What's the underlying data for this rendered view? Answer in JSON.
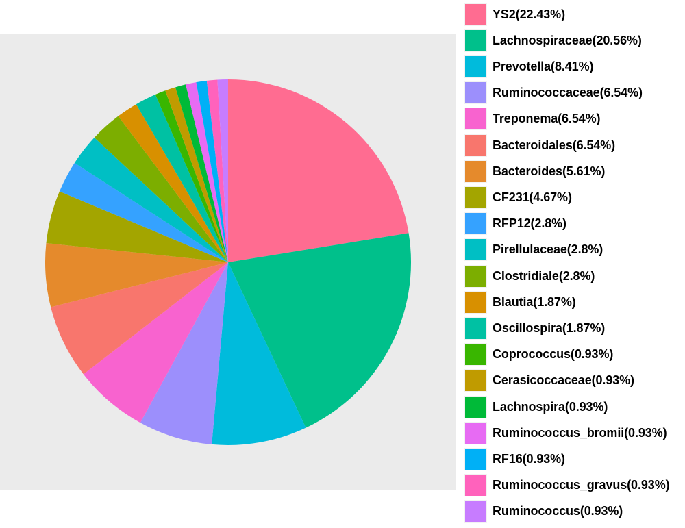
{
  "chart_data": {
    "type": "pie",
    "title": "",
    "start": "12 o'clock",
    "direction": "clockwise",
    "legend": "right",
    "background": "#ebebeb",
    "slices": [
      {
        "label": "YS2(22.43%)",
        "value": 22.43,
        "color": "#FF6C91"
      },
      {
        "label": "Lachnospiraceae(20.56%)",
        "value": 20.56,
        "color": "#00C08B"
      },
      {
        "label": "Prevotella(8.41%)",
        "value": 8.41,
        "color": "#00BBDC"
      },
      {
        "label": "Ruminococcaceae(6.54%)",
        "value": 6.54,
        "color": "#9C8FFC"
      },
      {
        "label": "Treponema(6.54%)",
        "value": 6.54,
        "color": "#F863CF"
      },
      {
        "label": "Bacteroidales(6.54%)",
        "value": 6.54,
        "color": "#F8766D"
      },
      {
        "label": "Bacteroides(5.61%)",
        "value": 5.61,
        "color": "#E58A2C"
      },
      {
        "label": "CF231(4.67%)",
        "value": 4.67,
        "color": "#A3A500"
      },
      {
        "label": "RFP12(2.8%)",
        "value": 2.8,
        "color": "#35A2FF"
      },
      {
        "label": "Pirellulaceae(2.8%)",
        "value": 2.8,
        "color": "#00BFC4"
      },
      {
        "label": "Clostridiale(2.8%)",
        "value": 2.8,
        "color": "#7CAE00"
      },
      {
        "label": "Blautia(1.87%)",
        "value": 1.87,
        "color": "#D89000"
      },
      {
        "label": "Oscillospira(1.87%)",
        "value": 1.87,
        "color": "#00C1A3"
      },
      {
        "label": "Coprococcus(0.93%)",
        "value": 0.93,
        "color": "#39B600"
      },
      {
        "label": "Cerasicoccaceae(0.93%)",
        "value": 0.93,
        "color": "#C09B00"
      },
      {
        "label": "Lachnospira(0.93%)",
        "value": 0.93,
        "color": "#00BA38"
      },
      {
        "label": "Ruminococcus_bromii(0.93%)",
        "value": 0.93,
        "color": "#E76BF3"
      },
      {
        "label": "RF16(0.93%)",
        "value": 0.93,
        "color": "#00B0F6"
      },
      {
        "label": "Ruminococcus_gravus(0.93%)",
        "value": 0.93,
        "color": "#FF62BC"
      },
      {
        "label": "Ruminococcus(0.93%)",
        "value": 0.93,
        "color": "#C77CFF"
      }
    ]
  }
}
